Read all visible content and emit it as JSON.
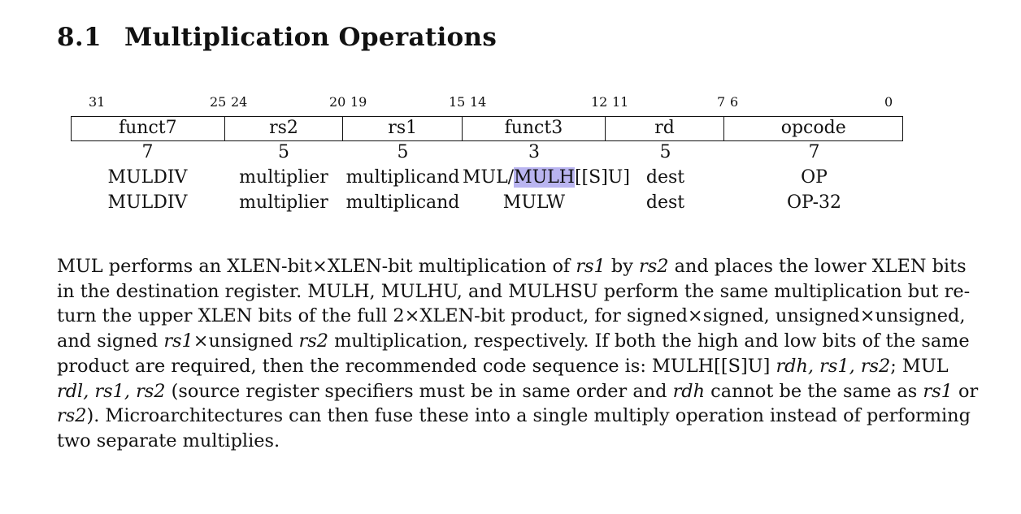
{
  "section": {
    "number": "8.1",
    "title": "Multiplication Operations"
  },
  "bit_positions": [
    "31",
    "25",
    "24",
    "20",
    "19",
    "15",
    "14",
    "12",
    "11",
    "7",
    "6",
    "0"
  ],
  "encoding": {
    "fields": [
      "funct7",
      "rs2",
      "rs1",
      "funct3",
      "rd",
      "opcode"
    ],
    "widths": [
      "7",
      "5",
      "5",
      "3",
      "5",
      "7"
    ],
    "rows": [
      {
        "funct7": "MULDIV",
        "rs2": "multiplier",
        "rs1": "multiplicand",
        "funct3_pre": "MUL/",
        "funct3_hl": "MULH",
        "funct3_post": "[[S]U]",
        "rd": "dest",
        "opcode": "OP"
      },
      {
        "funct7": "MULDIV",
        "rs2": "multiplier",
        "rs1": "multiplicand",
        "funct3": "MULW",
        "rd": "dest",
        "opcode": "OP-32"
      }
    ]
  },
  "paragraph": {
    "l1a": "MUL performs an XLEN-bit×XLEN-bit multiplication of ",
    "l1b": "rs1",
    "l1c": " by ",
    "l1d": "rs2",
    "l1e": " and places the lower XLEN bits",
    "l2": "in the destination register. MULH, MULHU, and MULHSU perform the same multiplication but re-",
    "l3": "turn the upper XLEN bits of the full 2×XLEN-bit product, for signed×signed, unsigned×unsigned,",
    "l4a": "and signed ",
    "l4b": "rs1",
    "l4c": "×unsigned ",
    "l4d": "rs2",
    "l4e": " multiplication, respectively. If both the high and low bits of the same",
    "l5a": "product are required, then the recommended code sequence is: MULH[[S]U] ",
    "l5b": "rdh, rs1, rs2",
    "l5c": "; MUL",
    "l6a": "rdl, rs1, rs2",
    "l6b": " (source register specifiers must be in same order and ",
    "l6c": "rdh",
    "l6d": " cannot be the same as ",
    "l6e": "rs1",
    "l6f": " or",
    "l7a": "rs2",
    "l7b": "). Microarchitectures can then fuse these into a single multiply operation instead of performing",
    "l8": "two separate multiplies."
  }
}
